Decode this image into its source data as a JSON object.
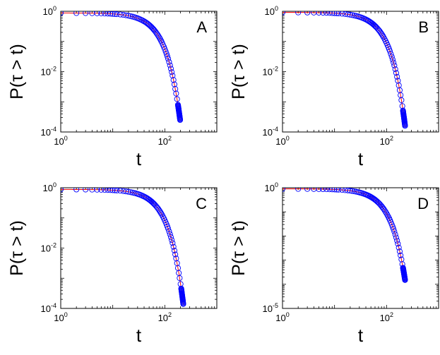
{
  "chart_data": [
    {
      "type": "scatter",
      "panel_label": "A",
      "xlabel": "t",
      "ylabel": "P(τ > t)",
      "xscale": "log",
      "yscale": "log",
      "xlim": [
        1,
        1000
      ],
      "ylim": [
        0.0001,
        1
      ],
      "xticks": [
        {
          "base": "10",
          "exp": "0"
        },
        {
          "base": "10",
          "exp": "2"
        }
      ],
      "yticks": [
        {
          "value": 1,
          "base": "10",
          "exp": "0"
        },
        {
          "value": 0.01,
          "base": "10",
          "exp": "-2"
        },
        {
          "value": 0.0001,
          "base": "10",
          "exp": "-4"
        }
      ],
      "tmax": 200,
      "y_start": 0.88,
      "y_end": 0.00025,
      "series": [
        {
          "marker": "open-circle",
          "color": "#0000ff"
        },
        {
          "marker": "line",
          "color": "#ff0000"
        }
      ]
    },
    {
      "type": "scatter",
      "panel_label": "B",
      "xlabel": "t",
      "ylabel": "P(τ > t)",
      "xscale": "log",
      "yscale": "log",
      "xlim": [
        1,
        1000
      ],
      "ylim": [
        0.0001,
        1
      ],
      "xticks": [
        {
          "base": "10",
          "exp": "0"
        },
        {
          "base": "10",
          "exp": "2"
        }
      ],
      "yticks": [
        {
          "value": 1,
          "base": "10",
          "exp": "0"
        },
        {
          "value": 0.01,
          "base": "10",
          "exp": "-2"
        },
        {
          "value": 0.0001,
          "base": "10",
          "exp": "-4"
        }
      ],
      "tmax": 230,
      "y_start": 0.92,
      "y_end": 0.00016,
      "series": [
        {
          "marker": "open-circle",
          "color": "#0000ff"
        },
        {
          "marker": "line",
          "color": "#ff0000"
        }
      ]
    },
    {
      "type": "scatter",
      "panel_label": "C",
      "xlabel": "t",
      "ylabel": "P(τ > t)",
      "xscale": "log",
      "yscale": "log",
      "xlim": [
        1,
        1000
      ],
      "ylim": [
        0.0001,
        1
      ],
      "xticks": [
        {
          "base": "10",
          "exp": "0"
        },
        {
          "base": "10",
          "exp": "2"
        }
      ],
      "yticks": [
        {
          "value": 1,
          "base": "10",
          "exp": "0"
        },
        {
          "value": 0.01,
          "base": "10",
          "exp": "-2"
        },
        {
          "value": 0.0001,
          "base": "10",
          "exp": "-4"
        }
      ],
      "tmax": 230,
      "y_start": 0.88,
      "y_end": 0.00014,
      "series": [
        {
          "marker": "open-circle",
          "color": "#0000ff"
        },
        {
          "marker": "line",
          "color": "#ff0000"
        }
      ]
    },
    {
      "type": "scatter",
      "panel_label": "D",
      "xlabel": "t",
      "ylabel": "P(τ > t)",
      "xscale": "log",
      "yscale": "log",
      "xlim": [
        1,
        1000
      ],
      "ylim": [
        1e-05,
        1
      ],
      "xticks": [
        {
          "base": "10",
          "exp": "0"
        },
        {
          "base": "10",
          "exp": "2"
        }
      ],
      "yticks": [
        {
          "value": 1,
          "base": "10",
          "exp": "0"
        },
        {
          "value": 1e-05,
          "base": "10",
          "exp": "-5"
        }
      ],
      "tmax": 230,
      "y_start": 0.9,
      "y_end": 0.00015,
      "series": [
        {
          "marker": "open-circle",
          "color": "#0000ff"
        },
        {
          "marker": "line",
          "color": "#ff0000"
        }
      ]
    }
  ]
}
